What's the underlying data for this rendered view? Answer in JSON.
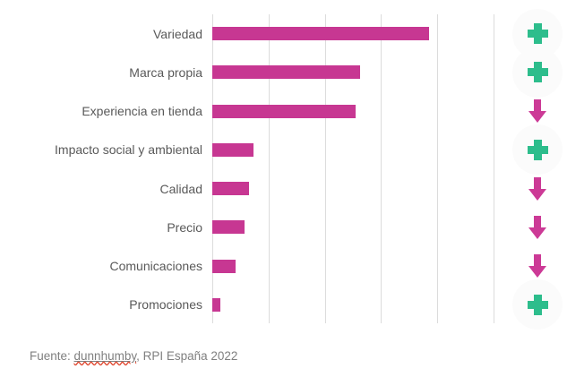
{
  "chart_data": {
    "type": "bar",
    "orientation": "horizontal",
    "title": "",
    "xlabel": "",
    "ylabel": "",
    "legend": "none",
    "categories": [
      "Variedad",
      "Marca propia",
      "Experiencia en tienda",
      "Impacto social y ambiental",
      "Calidad",
      "Precio",
      "Comunicaciones",
      "Promociones"
    ],
    "values": [
      3.85,
      2.62,
      2.55,
      0.74,
      0.66,
      0.58,
      0.42,
      0.14
    ],
    "trends": [
      "increase",
      "increase",
      "decrease",
      "increase",
      "decrease",
      "decrease",
      "decrease",
      "increase"
    ],
    "axis": {
      "min": 0,
      "max": 5,
      "gridline_count": 6,
      "tick_labels": []
    },
    "note": "no numeric axis labels shown; values estimated in gridline units (0-5)",
    "bar_color": "#c73792",
    "gridline_color": "#dcdcdc",
    "increase_icon": "plus-icon",
    "decrease_icon": "down-arrow-icon",
    "increase_color": "#2dbd8c",
    "decrease_color": "#cc3a96"
  },
  "footer": {
    "prefix": "Fuente: ",
    "link": "dunnhumby",
    "suffix": ", RPI España 2022"
  }
}
